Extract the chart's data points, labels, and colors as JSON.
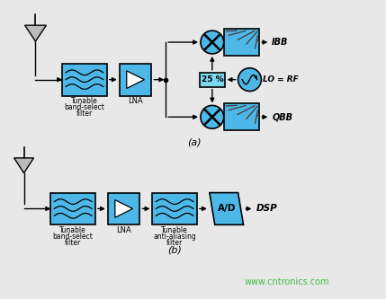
{
  "bg_color": "#e8e8e8",
  "box_color": "#4db8e8",
  "box_edge": "#000000",
  "text_color": "#000000",
  "watermark_color": "#44bb44",
  "watermark": "www.cntronics.com",
  "title_a": "(a)",
  "title_b": "(b)",
  "ant_fill": "#bbbbbb",
  "pct_box_color": "#7dd8f0",
  "lp_stripe_color": "#888888"
}
